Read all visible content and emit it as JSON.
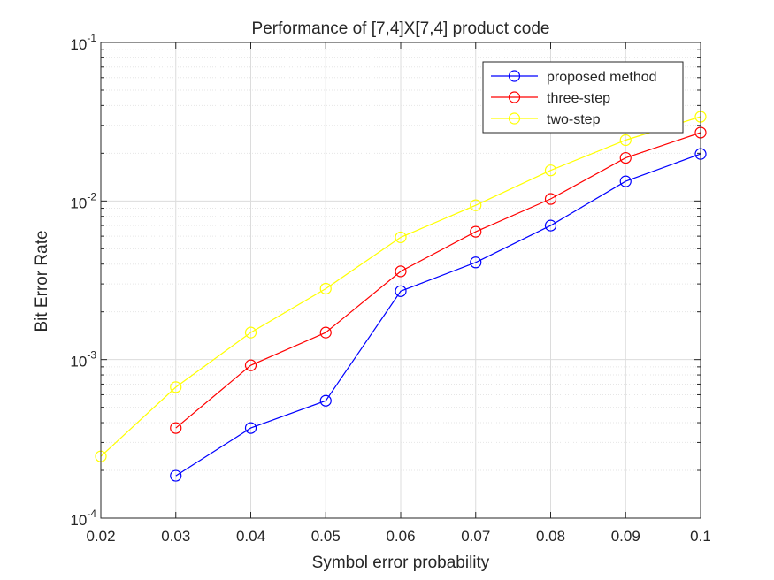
{
  "chart_data": {
    "type": "line",
    "title": "Performance of [7,4]X[7,4] product code",
    "xlabel": "Symbol error probability",
    "ylabel": "Bit Error Rate",
    "xlim": [
      0.02,
      0.1
    ],
    "ylim": [
      0.0001,
      0.1
    ],
    "yscale": "log",
    "grid": true,
    "legend_position": "top-right",
    "x_ticks": [
      "0.02",
      "0.03",
      "0.04",
      "0.05",
      "0.06",
      "0.07",
      "0.08",
      "0.09",
      "0.1"
    ],
    "y_ticks": [
      {
        "value": 0.0001,
        "base": "10",
        "exp": "-4"
      },
      {
        "value": 0.001,
        "base": "10",
        "exp": "-3"
      },
      {
        "value": 0.01,
        "base": "10",
        "exp": "-2"
      },
      {
        "value": 0.1,
        "base": "10",
        "exp": "-1"
      }
    ],
    "series": [
      {
        "name": "proposed method",
        "color": "#0000ff",
        "marker": "circle",
        "x": [
          0.03,
          0.04,
          0.05,
          0.06,
          0.07,
          0.08,
          0.09,
          0.1
        ],
        "y": [
          0.000185,
          0.00037,
          0.00055,
          0.0027,
          0.0041,
          0.007,
          0.0133,
          0.0198
        ]
      },
      {
        "name": "three-step",
        "color": "#ff0000",
        "marker": "circle",
        "x": [
          0.03,
          0.04,
          0.05,
          0.06,
          0.07,
          0.08,
          0.09,
          0.1
        ],
        "y": [
          0.00037,
          0.00092,
          0.00148,
          0.0036,
          0.0064,
          0.0103,
          0.0187,
          0.027
        ]
      },
      {
        "name": "two-step",
        "color": "#ffff00",
        "marker": "circle",
        "x": [
          0.02,
          0.03,
          0.04,
          0.05,
          0.06,
          0.07,
          0.08,
          0.09,
          0.1
        ],
        "y": [
          0.000245,
          0.00067,
          0.00148,
          0.0028,
          0.0059,
          0.0094,
          0.0156,
          0.0242,
          0.034
        ]
      }
    ]
  }
}
